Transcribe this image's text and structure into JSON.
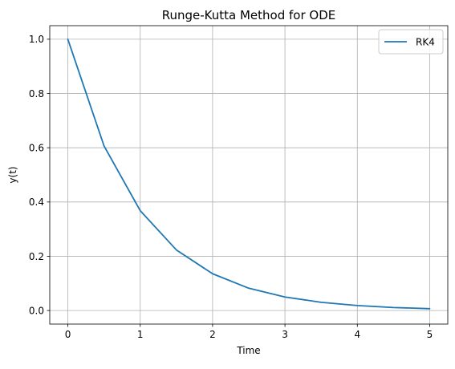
{
  "chart_data": {
    "type": "line",
    "title": "Runge-Kutta Method for ODE",
    "xlabel": "Time",
    "ylabel": "y(t)",
    "xlim": [
      -0.25,
      5.25
    ],
    "ylim": [
      -0.05,
      1.05
    ],
    "xticks": [
      0,
      1,
      2,
      3,
      4,
      5
    ],
    "xtick_labels": [
      "0",
      "1",
      "2",
      "3",
      "4",
      "5"
    ],
    "yticks": [
      0.0,
      0.2,
      0.4,
      0.6,
      0.8,
      1.0
    ],
    "ytick_labels": [
      "0.0",
      "0.2",
      "0.4",
      "0.6",
      "0.8",
      "1.0"
    ],
    "grid": true,
    "legend_position": "top-right",
    "series": [
      {
        "name": "RK4",
        "color": "#1f77b4",
        "x": [
          0,
          0.5,
          1.0,
          1.5,
          2.0,
          2.5,
          3.0,
          3.5,
          4.0,
          4.5,
          5.0
        ],
        "y": [
          1.0,
          0.6067,
          0.3681,
          0.2233,
          0.1355,
          0.0822,
          0.0499,
          0.0303,
          0.0184,
          0.0111,
          0.0068
        ]
      }
    ]
  }
}
